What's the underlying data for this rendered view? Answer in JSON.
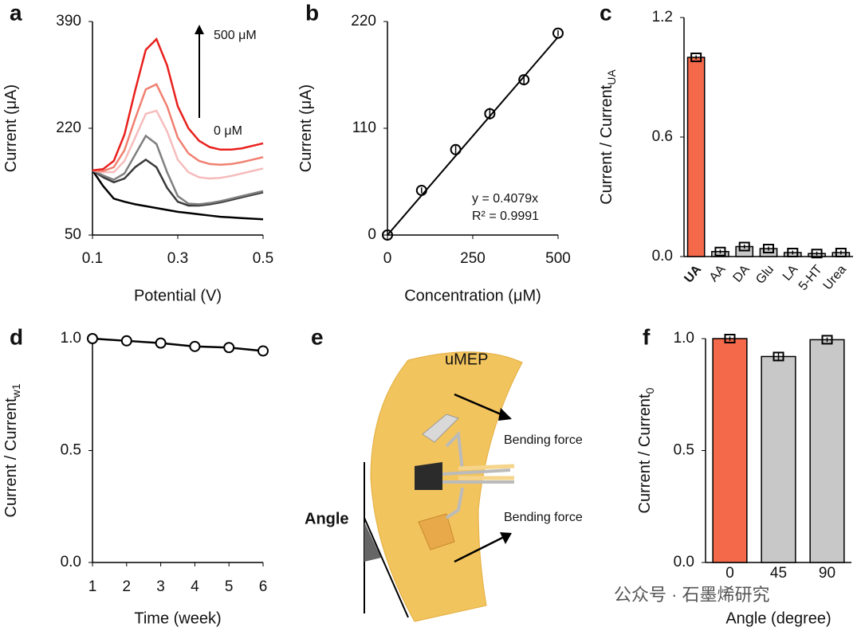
{
  "chart_data": [
    {
      "type": "line",
      "panel": "a",
      "x_label": "Potential (V)",
      "y_label": "Current (μA)",
      "xlim": [
        0.1,
        0.5
      ],
      "xticks": [
        0.1,
        0.3,
        0.5
      ],
      "ylim": [
        50,
        390
      ],
      "yticks": [
        50,
        220,
        390
      ],
      "annotations": [
        "500 μM",
        "0 μM"
      ],
      "x": [
        0.1,
        0.125,
        0.15,
        0.175,
        0.2,
        0.225,
        0.25,
        0.275,
        0.3,
        0.325,
        0.35,
        0.375,
        0.4,
        0.425,
        0.45,
        0.475,
        0.5
      ],
      "series": [
        {
          "color": "#000000",
          "values": [
            153,
            128,
            108,
            103,
            99,
            96,
            93,
            90,
            87,
            85,
            83,
            81,
            79,
            78,
            77,
            76,
            75
          ]
        },
        {
          "color": "#3a3a3a",
          "values": [
            153,
            142,
            134,
            140,
            158,
            170,
            158,
            125,
            103,
            97,
            97,
            99,
            102,
            106,
            110,
            114,
            118
          ]
        },
        {
          "color": "#7f7f7f",
          "values": [
            153,
            145,
            138,
            148,
            178,
            208,
            195,
            150,
            112,
            100,
            99,
            101,
            104,
            108,
            112,
            116,
            120
          ]
        },
        {
          "color": "#f6bcbc",
          "values": [
            153,
            150,
            150,
            168,
            205,
            243,
            248,
            215,
            170,
            150,
            142,
            140,
            141,
            144,
            148,
            152,
            156
          ]
        },
        {
          "color": "#f08070",
          "values": [
            153,
            152,
            158,
            185,
            235,
            282,
            290,
            255,
            205,
            180,
            168,
            163,
            162,
            163,
            166,
            170,
            174
          ]
        },
        {
          "color": "#e8201c",
          "values": [
            153,
            155,
            168,
            210,
            280,
            345,
            362,
            320,
            255,
            220,
            200,
            190,
            186,
            186,
            188,
            192,
            196
          ]
        }
      ]
    },
    {
      "type": "scatter",
      "panel": "b",
      "x_label": "Concentration (μM)",
      "y_label": "Current (μA)",
      "xlim": [
        0,
        500
      ],
      "xticks": [
        0,
        250,
        500
      ],
      "ylim": [
        0,
        220
      ],
      "yticks": [
        0,
        110,
        220
      ],
      "annotations": [
        "y = 0.4079x",
        "R² = 0.9991"
      ],
      "x": [
        0,
        100,
        200,
        300,
        400,
        500
      ],
      "values": [
        0,
        46,
        88,
        125,
        160,
        208
      ],
      "errors": [
        1,
        3,
        4,
        6,
        4,
        3
      ],
      "color": "#000000",
      "fit": {
        "x": [
          0,
          500
        ],
        "values": [
          0,
          204
        ]
      }
    },
    {
      "type": "bar",
      "panel": "c",
      "y_label": "Current / Current",
      "y_label_sub": "UA",
      "ylim": [
        0,
        1.2
      ],
      "yticks": [
        {
          "value": 0,
          "label": "0.0"
        },
        {
          "value": 0.6,
          "label": "0.6"
        },
        {
          "value": 1.2,
          "label": "1.2"
        }
      ],
      "categories": [
        "UA",
        "AA",
        "DA",
        "Glu",
        "LA",
        "5-HT",
        "Urea"
      ],
      "values": [
        1.0,
        0.025,
        0.05,
        0.04,
        0.02,
        0.015,
        0.02
      ],
      "errors": [
        0.01,
        0.01,
        0.01,
        0.01,
        0.01,
        0.01,
        0.01
      ],
      "colors": [
        "#f4694a",
        "#c8c8c8",
        "#c8c8c8",
        "#c8c8c8",
        "#c8c8c8",
        "#c8c8c8",
        "#c8c8c8"
      ]
    },
    {
      "type": "line",
      "panel": "d",
      "x_label": "Time (week)",
      "y_label": "Current / Current",
      "y_label_sub": "w1",
      "xlim": [
        1,
        6
      ],
      "xticks": [
        1,
        2,
        3,
        4,
        5,
        6
      ],
      "ylim": [
        0,
        1
      ],
      "yticks": [
        {
          "value": 0,
          "label": "0.0"
        },
        {
          "value": 0.5,
          "label": "0.5"
        },
        {
          "value": 1,
          "label": "1.0"
        }
      ],
      "markers": "circle",
      "x": [
        1,
        2,
        3,
        4,
        5,
        6
      ],
      "series": [
        {
          "color": "#000000",
          "values": [
            1.0,
            0.99,
            0.98,
            0.965,
            0.96,
            0.945
          ]
        }
      ]
    },
    {
      "type": "bar",
      "panel": "f",
      "x_label": "Angle (degree)",
      "y_label": "Current / Current",
      "y_label_sub": "0",
      "ylim": [
        0,
        1
      ],
      "yticks": [
        {
          "value": 0,
          "label": "0.0"
        },
        {
          "value": 0.5,
          "label": "0.5"
        },
        {
          "value": 1,
          "label": "1.0"
        }
      ],
      "categories": [
        "0",
        "45",
        "90"
      ],
      "values": [
        1.0,
        0.92,
        0.995
      ],
      "errors": [
        0.01,
        0.015,
        0.01
      ],
      "colors": [
        "#f4694a",
        "#c8c8c8",
        "#c8c8c8"
      ]
    }
  ],
  "diagram": {
    "panel": "e",
    "title": "uMEP",
    "force_top": "Bending force",
    "force_bottom": "Bending force",
    "angle": "Angle"
  },
  "watermark": "公众号 · 石墨烯研究"
}
